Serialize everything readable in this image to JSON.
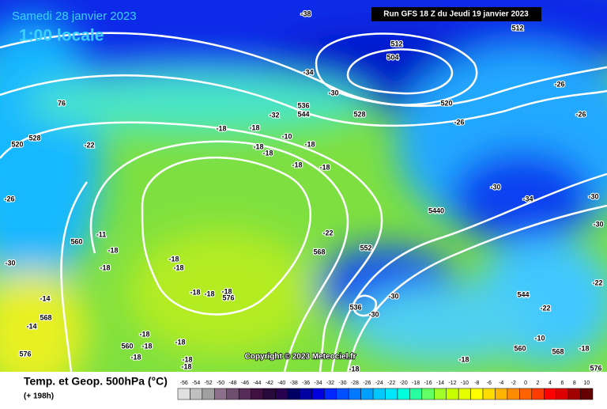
{
  "header": {
    "date": "Samedi 28 janvier 2023",
    "local_time": "1:00 locale",
    "run_info": "Run GFS 18 Z du Jeudi 19 janvier 2023"
  },
  "map": {
    "labels": [
      "-38",
      "512",
      "512",
      "504",
      "-34",
      "-30",
      "536",
      "544",
      "-32",
      "528",
      "520",
      "-26",
      "-26",
      "-26",
      "76",
      "528",
      "520",
      "-22",
      "-18",
      "-18",
      "-18",
      "-18",
      "-10",
      "-18",
      "-18",
      "-18",
      "-26",
      "-30",
      "-34",
      "-30",
      "-30",
      "5440",
      "-22",
      "-11",
      "560",
      "-18",
      "-18",
      "-18",
      "-18",
      "568",
      "552",
      "-30",
      "-14",
      "568",
      "-14",
      "-18",
      "-18",
      "-18",
      "576",
      "536",
      "-30",
      "544",
      "-22",
      "-22",
      "-18",
      "560",
      "-18",
      "-18",
      "576",
      "-18",
      "-18",
      "-18",
      "-18",
      "-18",
      "-10",
      "560",
      "568",
      "-18",
      "576",
      "-30"
    ],
    "copyright": "Copyright © 2023 Meteociel.fr"
  },
  "footer": {
    "title": "Temp. et Geop. 500hPa (°C)",
    "forecast": "(+ 198h)",
    "scale": {
      "labels": [
        -56,
        -54,
        -52,
        -50,
        -48,
        -46,
        -44,
        -42,
        -40,
        -38,
        -36,
        -34,
        -32,
        -30,
        -28,
        -26,
        -24,
        -22,
        -20,
        -18,
        -16,
        -14,
        -12,
        -10,
        -8,
        -6,
        -4,
        -2,
        0,
        2,
        4,
        6,
        8,
        10
      ],
      "colors": [
        "#e0e0e0",
        "#c0c0c0",
        "#a0a0a0",
        "#8c708c",
        "#704e70",
        "#582c58",
        "#401040",
        "#2a0a3c",
        "#280050",
        "#000064",
        "#0000a0",
        "#0000dc",
        "#0028ff",
        "#0050ff",
        "#0078ff",
        "#00a0ff",
        "#00c8ff",
        "#00e6ff",
        "#00ffdc",
        "#28ffa0",
        "#64ff64",
        "#a0ff28",
        "#c8ff00",
        "#e6ff00",
        "#ffff00",
        "#ffdc00",
        "#ffb400",
        "#ff8c00",
        "#ff6400",
        "#ff3c00",
        "#ff0000",
        "#dc0000",
        "#a00000",
        "#640000"
      ]
    }
  }
}
